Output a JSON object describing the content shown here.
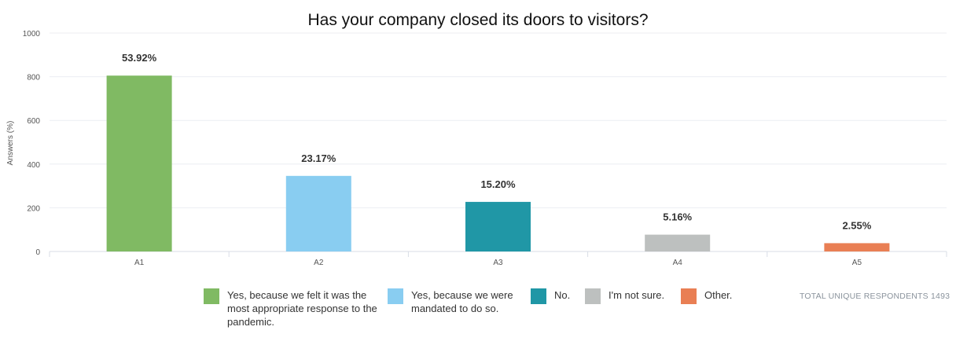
{
  "chart_data": {
    "type": "bar",
    "title": "Has your company closed its doors to visitors?",
    "ylabel": "Answers (%)",
    "xlabel": "",
    "ylim": [
      0,
      1000
    ],
    "yticks": [
      0,
      200,
      400,
      600,
      800,
      1000
    ],
    "grid": true,
    "categories": [
      "A1",
      "A2",
      "A3",
      "A4",
      "A5"
    ],
    "values": [
      805,
      346,
      227,
      77,
      38
    ],
    "data_labels": [
      "53.92%",
      "23.17%",
      "15.20%",
      "5.16%",
      "2.55%"
    ],
    "colors": [
      "#80ba63",
      "#89cdf1",
      "#2097a6",
      "#bdc0bf",
      "#e97f54"
    ],
    "legend": [
      "Yes, because we felt it was the most appropriate response to the pandemic.",
      "Yes, because we were mandated to do so.",
      "No.",
      "I'm not sure.",
      "Other."
    ],
    "legend_position": "bottom"
  },
  "footer": {
    "total_label": "TOTAL UNIQUE RESPONDENTS",
    "total_value": "1493"
  }
}
